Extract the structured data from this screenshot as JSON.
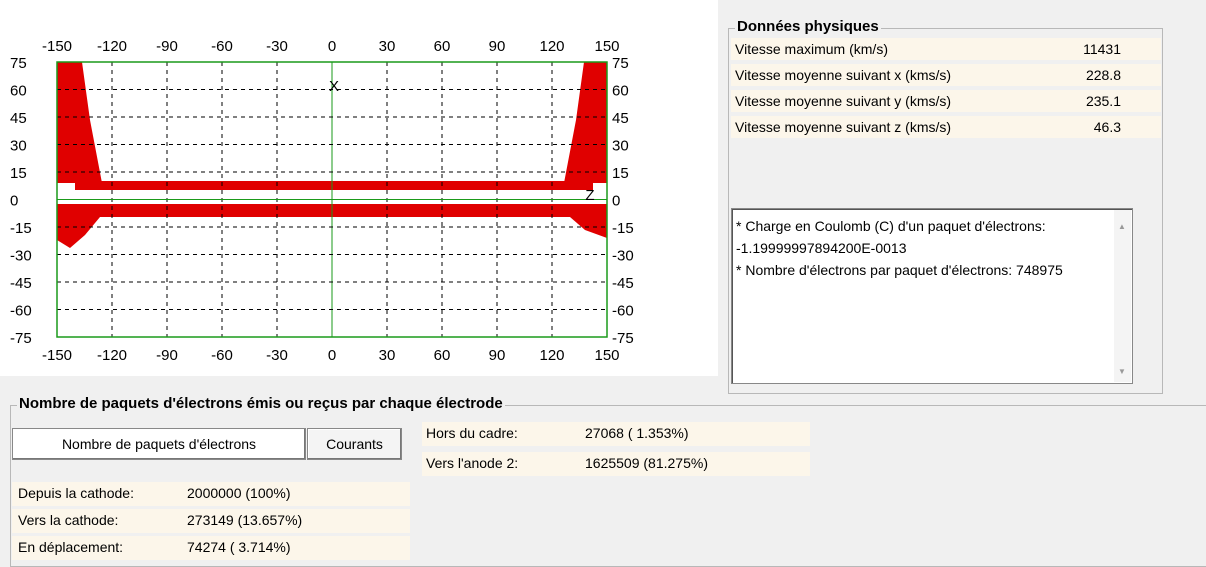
{
  "plot": {
    "xticks": [
      -150,
      -120,
      -90,
      -60,
      -30,
      0,
      30,
      60,
      90,
      120,
      150
    ],
    "yticks": [
      75,
      60,
      45,
      30,
      15,
      0,
      -15,
      -30,
      -45,
      -60,
      -75
    ],
    "markers": [
      "X",
      "Z"
    ]
  },
  "physics": {
    "title": "Données physiques",
    "rows": [
      {
        "label": "Vitesse maximum (km/s)",
        "value": "11431"
      },
      {
        "label": "Vitesse moyenne suivant x (kms/s)",
        "value": "228.8"
      },
      {
        "label": "Vitesse moyenne suivant y (kms/s)",
        "value": "235.1"
      },
      {
        "label": "Vitesse moyenne suivant z (kms/s)",
        "value": "46.3"
      }
    ],
    "notes": [
      "* Charge en Coulomb (C) d'un paquet d'électrons: -1.19999997894200E-0013",
      "* Nombre d'électrons par paquet d'électrons: 748975"
    ]
  },
  "packets": {
    "title": "Nombre de paquets d'électrons émis ou reçus par chaque électrode",
    "tabs": [
      "Nombre de paquets d'électrons",
      "Courants"
    ],
    "right_rows": [
      {
        "label": "Hors du cadre:",
        "value": "27068 ( 1.353%)"
      },
      {
        "label": "Vers l'anode 2:",
        "value": "1625509 (81.275%)"
      }
    ],
    "left_rows": [
      {
        "label": "Depuis la cathode:",
        "value": "2000000 (100%)"
      },
      {
        "label": "Vers la cathode:",
        "value": "273149 (13.657%)"
      },
      {
        "label": "En déplacement:",
        "value": "74274 ( 3.714%)"
      }
    ]
  }
}
